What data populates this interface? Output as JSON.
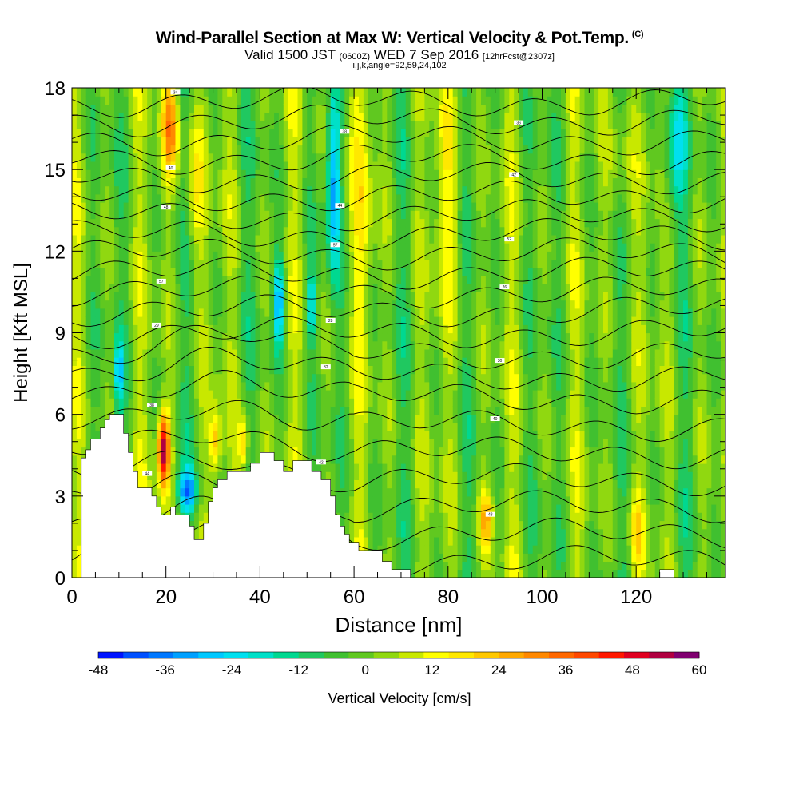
{
  "title": "Wind-Parallel Section at Max W: Vertical Velocity & Pot.Temp.",
  "copyright_mark": "(C)",
  "subtitle_main": "Valid 1500 JST",
  "subtitle_utc": "(0600Z)",
  "subtitle_date": "WED 7 Sep 2016",
  "subtitle_fcst": "[12hrFcst@2307z]",
  "subtitle2": "i,j,k,angle=92,59,24,102",
  "chart_data": {
    "type": "heatmap",
    "xlabel": "Distance [nm]",
    "ylabel": "Height [Kft MSL]",
    "xlim": [
      0,
      139
    ],
    "ylim": [
      0,
      18
    ],
    "x_ticks": [
      "0",
      "20",
      "40",
      "60",
      "80",
      "100",
      "120"
    ],
    "y_ticks": [
      "0",
      "3",
      "6",
      "9",
      "12",
      "15",
      "18"
    ],
    "colorbar": {
      "label": "Vertical Velocity [cm/s]",
      "tick_labels": [
        "-48",
        "-36",
        "-24",
        "-12",
        "0",
        "12",
        "24",
        "36",
        "48",
        "60"
      ],
      "min": -48,
      "max": 60,
      "step": 4.5,
      "colors": [
        "#0014ff",
        "#0050ff",
        "#0078ff",
        "#00a0ff",
        "#00c8ff",
        "#00e0f0",
        "#00e0c8",
        "#00d890",
        "#20c860",
        "#40c030",
        "#60c820",
        "#90d810",
        "#c8e800",
        "#ffff00",
        "#ffe800",
        "#ffc800",
        "#ffa800",
        "#ff8800",
        "#ff6800",
        "#ff4800",
        "#ff1800",
        "#e00020",
        "#b00040",
        "#800070"
      ]
    },
    "terrain_profile_kft": [
      [
        0,
        0
      ],
      [
        2,
        0
      ],
      [
        2,
        4.4
      ],
      [
        3,
        4.4
      ],
      [
        3,
        4.7
      ],
      [
        4,
        4.7
      ],
      [
        4,
        5.1
      ],
      [
        6,
        5.1
      ],
      [
        6,
        5.5
      ],
      [
        7,
        5.5
      ],
      [
        7,
        5.8
      ],
      [
        8,
        5.8
      ],
      [
        8,
        6.0
      ],
      [
        11,
        6.0
      ],
      [
        11,
        5.3
      ],
      [
        12,
        5.3
      ],
      [
        12,
        4.6
      ],
      [
        13,
        4.6
      ],
      [
        13,
        3.9
      ],
      [
        14,
        3.9
      ],
      [
        14,
        3.3
      ],
      [
        17,
        3.3
      ],
      [
        17,
        3.0
      ],
      [
        18,
        3.0
      ],
      [
        18,
        2.6
      ],
      [
        19,
        2.6
      ],
      [
        19,
        2.3
      ],
      [
        21,
        2.3
      ],
      [
        21,
        2.6
      ],
      [
        22,
        2.6
      ],
      [
        22,
        2.3
      ],
      [
        25,
        2.3
      ],
      [
        25,
        1.9
      ],
      [
        26,
        1.9
      ],
      [
        26,
        1.4
      ],
      [
        28,
        1.4
      ],
      [
        28,
        2.0
      ],
      [
        29,
        2.0
      ],
      [
        29,
        2.8
      ],
      [
        30,
        2.8
      ],
      [
        30,
        3.3
      ],
      [
        31,
        3.3
      ],
      [
        31,
        3.6
      ],
      [
        33,
        3.6
      ],
      [
        33,
        3.9
      ],
      [
        38,
        3.9
      ],
      [
        38,
        4.2
      ],
      [
        40,
        4.2
      ],
      [
        40,
        4.6
      ],
      [
        43,
        4.6
      ],
      [
        43,
        4.3
      ],
      [
        45,
        4.3
      ],
      [
        45,
        3.9
      ],
      [
        47,
        3.9
      ],
      [
        47,
        4.3
      ],
      [
        51,
        4.3
      ],
      [
        51,
        3.9
      ],
      [
        53,
        3.9
      ],
      [
        53,
        3.6
      ],
      [
        55,
        3.6
      ],
      [
        55,
        3.0
      ],
      [
        56,
        3.0
      ],
      [
        56,
        2.3
      ],
      [
        57,
        2.3
      ],
      [
        57,
        1.9
      ],
      [
        58,
        1.9
      ],
      [
        58,
        1.6
      ],
      [
        59,
        1.6
      ],
      [
        59,
        1.3
      ],
      [
        61,
        1.3
      ],
      [
        61,
        1.0
      ],
      [
        66,
        1.0
      ],
      [
        66,
        0.6
      ],
      [
        68,
        0.6
      ],
      [
        68,
        0.3
      ],
      [
        72,
        0.3
      ],
      [
        72,
        0
      ],
      [
        125,
        0
      ],
      [
        125,
        0.3
      ],
      [
        128,
        0.3
      ],
      [
        128,
        0
      ],
      [
        139,
        0
      ]
    ],
    "w_max_cm_s": 60,
    "w_min_cm_s": -48,
    "theta_contour_labels": [
      "60",
      "60",
      "48",
      "44",
      "42",
      "40",
      "38",
      "32",
      "30",
      "29",
      "28",
      "26",
      "57",
      "57",
      "52",
      "48",
      "44",
      "42",
      "40",
      "38",
      "36",
      "34",
      "32",
      "31",
      "30"
    ]
  }
}
